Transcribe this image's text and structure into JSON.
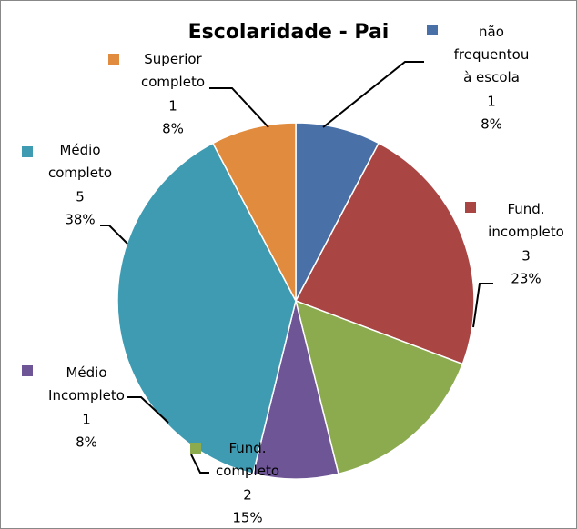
{
  "chart_data": {
    "type": "pie",
    "title": "Escolaridade - Pai",
    "categories": [
      "não\nfrequentou\nà escola",
      "Fund.\nincompleto",
      "Fund.\ncompleto",
      "Médio\nIncompleto",
      "Médio\ncompleto",
      "Superior\ncompleto"
    ],
    "values": [
      1,
      3,
      2,
      1,
      5,
      1
    ],
    "percentage_labels": [
      "8%",
      "23%",
      "15%",
      "8%",
      "38%",
      "8%"
    ],
    "colors": [
      "#4a70a8",
      "#a94543",
      "#8cab4e",
      "#6e5596",
      "#3e9bb2",
      "#e08b3d"
    ]
  }
}
